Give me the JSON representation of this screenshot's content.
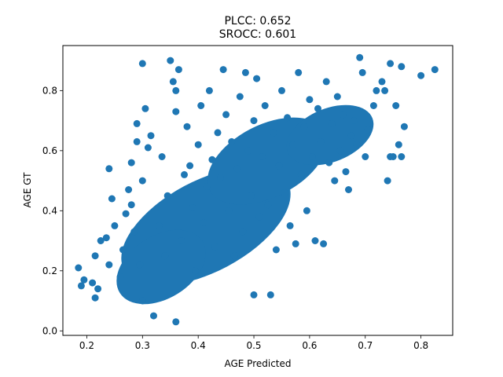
{
  "chart_data": {
    "type": "scatter",
    "title": "PLCC: 0.652",
    "subtitle": "SROCC: 0.601",
    "xlabel": "AGE Predicted",
    "ylabel": "AGE GT",
    "xlim": [
      0.157,
      0.857
    ],
    "ylim": [
      -0.015,
      0.95
    ],
    "xticks": [
      0.2,
      0.3,
      0.4,
      0.5,
      0.6,
      0.7,
      0.8
    ],
    "xtick_labels": [
      "0.2",
      "0.3",
      "0.4",
      "0.5",
      "0.6",
      "0.7",
      "0.8"
    ],
    "yticks": [
      0.0,
      0.2,
      0.4,
      0.6,
      0.8
    ],
    "ytick_labels": [
      "0.0",
      "0.2",
      "0.4",
      "0.6",
      "0.8"
    ],
    "grid": false,
    "marker_color": "#1f77b4",
    "series": [
      {
        "points": [
          [
            0.185,
            0.21
          ],
          [
            0.19,
            0.15
          ],
          [
            0.195,
            0.17
          ],
          [
            0.21,
            0.16
          ],
          [
            0.215,
            0.11
          ],
          [
            0.22,
            0.14
          ],
          [
            0.215,
            0.25
          ],
          [
            0.225,
            0.3
          ],
          [
            0.235,
            0.31
          ],
          [
            0.24,
            0.22
          ],
          [
            0.24,
            0.54
          ],
          [
            0.245,
            0.44
          ],
          [
            0.25,
            0.35
          ],
          [
            0.26,
            0.18
          ],
          [
            0.265,
            0.27
          ],
          [
            0.27,
            0.39
          ],
          [
            0.275,
            0.47
          ],
          [
            0.28,
            0.56
          ],
          [
            0.28,
            0.42
          ],
          [
            0.285,
            0.33
          ],
          [
            0.29,
            0.63
          ],
          [
            0.29,
            0.69
          ],
          [
            0.295,
            0.22
          ],
          [
            0.3,
            0.5
          ],
          [
            0.3,
            0.1
          ],
          [
            0.3,
            0.89
          ],
          [
            0.305,
            0.74
          ],
          [
            0.31,
            0.61
          ],
          [
            0.315,
            0.65
          ],
          [
            0.32,
            0.05
          ],
          [
            0.33,
            0.35
          ],
          [
            0.335,
            0.58
          ],
          [
            0.34,
            0.25
          ],
          [
            0.345,
            0.45
          ],
          [
            0.35,
            0.9
          ],
          [
            0.355,
            0.83
          ],
          [
            0.36,
            0.8
          ],
          [
            0.36,
            0.73
          ],
          [
            0.36,
            0.03
          ],
          [
            0.365,
            0.87
          ],
          [
            0.37,
            0.3
          ],
          [
            0.375,
            0.52
          ],
          [
            0.38,
            0.68
          ],
          [
            0.385,
            0.55
          ],
          [
            0.39,
            0.41
          ],
          [
            0.395,
            0.2
          ],
          [
            0.4,
            0.62
          ],
          [
            0.405,
            0.75
          ],
          [
            0.41,
            0.36
          ],
          [
            0.415,
            0.48
          ],
          [
            0.42,
            0.8
          ],
          [
            0.425,
            0.57
          ],
          [
            0.43,
            0.28
          ],
          [
            0.435,
            0.66
          ],
          [
            0.44,
            0.51
          ],
          [
            0.445,
            0.87
          ],
          [
            0.45,
            0.72
          ],
          [
            0.455,
            0.4
          ],
          [
            0.46,
            0.63
          ],
          [
            0.465,
            0.25
          ],
          [
            0.47,
            0.54
          ],
          [
            0.475,
            0.78
          ],
          [
            0.48,
            0.33
          ],
          [
            0.485,
            0.86
          ],
          [
            0.49,
            0.6
          ],
          [
            0.495,
            0.45
          ],
          [
            0.5,
            0.7
          ],
          [
            0.5,
            0.12
          ],
          [
            0.505,
            0.84
          ],
          [
            0.51,
            0.38
          ],
          [
            0.515,
            0.58
          ],
          [
            0.52,
            0.75
          ],
          [
            0.525,
            0.42
          ],
          [
            0.53,
            0.12
          ],
          [
            0.535,
            0.66
          ],
          [
            0.54,
            0.27
          ],
          [
            0.545,
            0.55
          ],
          [
            0.55,
            0.8
          ],
          [
            0.555,
            0.46
          ],
          [
            0.56,
            0.71
          ],
          [
            0.565,
            0.35
          ],
          [
            0.57,
            0.62
          ],
          [
            0.575,
            0.29
          ],
          [
            0.58,
            0.86
          ],
          [
            0.585,
            0.52
          ],
          [
            0.59,
            0.68
          ],
          [
            0.595,
            0.4
          ],
          [
            0.6,
            0.77
          ],
          [
            0.605,
            0.58
          ],
          [
            0.61,
            0.3
          ],
          [
            0.615,
            0.74
          ],
          [
            0.62,
            0.63
          ],
          [
            0.625,
            0.29
          ],
          [
            0.63,
            0.83
          ],
          [
            0.635,
            0.56
          ],
          [
            0.64,
            0.69
          ],
          [
            0.645,
            0.5
          ],
          [
            0.65,
            0.78
          ],
          [
            0.655,
            0.6
          ],
          [
            0.66,
            0.72
          ],
          [
            0.665,
            0.53
          ],
          [
            0.67,
            0.47
          ],
          [
            0.675,
            0.65
          ],
          [
            0.68,
            0.7
          ],
          [
            0.685,
            0.62
          ],
          [
            0.69,
            0.91
          ],
          [
            0.695,
            0.86
          ],
          [
            0.7,
            0.58
          ],
          [
            0.705,
            0.67
          ],
          [
            0.715,
            0.75
          ],
          [
            0.72,
            0.8
          ],
          [
            0.73,
            0.83
          ],
          [
            0.735,
            0.8
          ],
          [
            0.74,
            0.5
          ],
          [
            0.745,
            0.58
          ],
          [
            0.745,
            0.89
          ],
          [
            0.75,
            0.58
          ],
          [
            0.755,
            0.75
          ],
          [
            0.76,
            0.62
          ],
          [
            0.765,
            0.58
          ],
          [
            0.765,
            0.88
          ],
          [
            0.77,
            0.68
          ],
          [
            0.8,
            0.85
          ],
          [
            0.825,
            0.87
          ]
        ]
      }
    ]
  }
}
